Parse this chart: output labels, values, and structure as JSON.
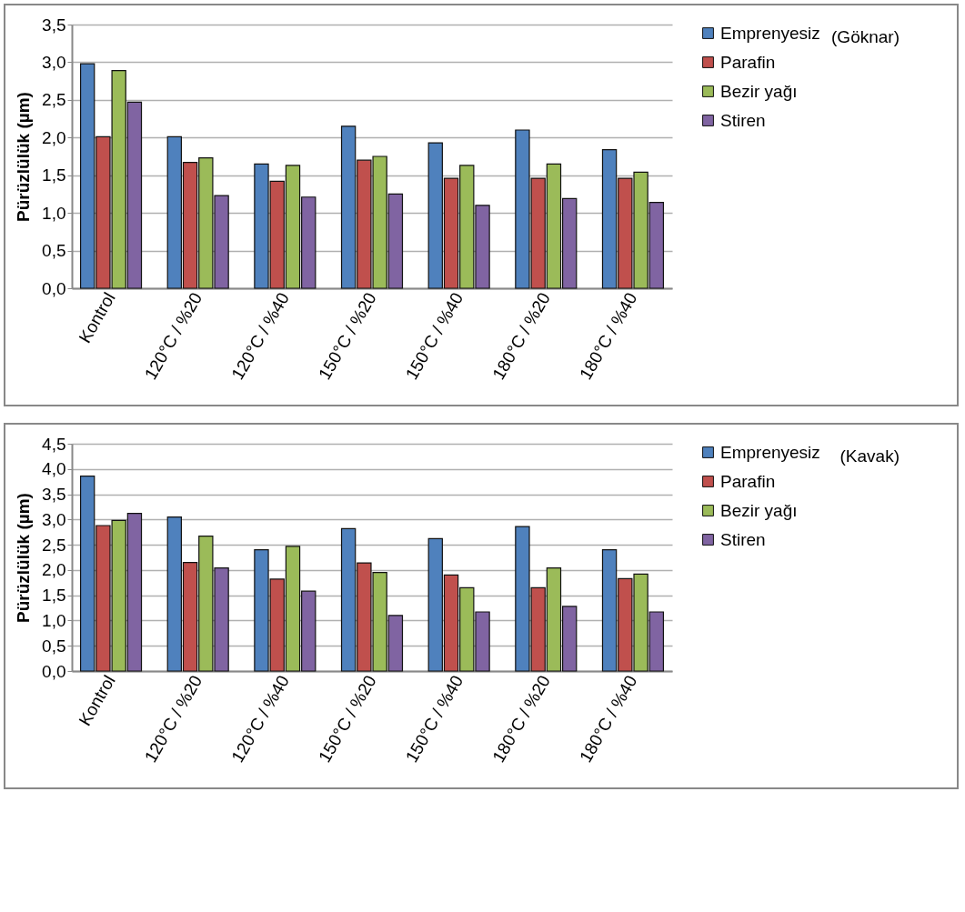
{
  "chart_data": [
    {
      "type": "bar",
      "ylabel": "Pürüzlülük (µm)",
      "annotations": [
        "(Göknar)"
      ],
      "categories": [
        "Kontrol",
        "120°C / %20",
        "120°C / %40",
        "150°C / %20",
        "150°C / %40",
        "180°C / %20",
        "180°C / %40"
      ],
      "series": [
        {
          "name": "Emprenyesiz",
          "color": "#4f81bd",
          "values": [
            2.98,
            2.01,
            1.65,
            2.15,
            1.93,
            2.1,
            1.84
          ]
        },
        {
          "name": "Parafin",
          "color": "#c0504d",
          "values": [
            2.01,
            1.67,
            1.42,
            1.7,
            1.46,
            1.46,
            1.46
          ]
        },
        {
          "name": "Bezir yağı",
          "color": "#9bbb59",
          "values": [
            2.89,
            1.73,
            1.63,
            1.75,
            1.63,
            1.65,
            1.54
          ]
        },
        {
          "name": "Stiren",
          "color": "#8064a2",
          "values": [
            2.47,
            1.23,
            1.21,
            1.25,
            1.1,
            1.19,
            1.14
          ]
        }
      ],
      "ylim": [
        0,
        3.5
      ],
      "yticks": [
        {
          "value": 0,
          "label": "0,0"
        },
        {
          "value": 0.5,
          "label": "0,5"
        },
        {
          "value": 1,
          "label": "1,0"
        },
        {
          "value": 1.5,
          "label": "1,5"
        },
        {
          "value": 2,
          "label": "2,0"
        },
        {
          "value": 2.5,
          "label": "2,5"
        },
        {
          "value": 3,
          "label": "3,0"
        },
        {
          "value": 3.5,
          "label": "3,5"
        }
      ],
      "grid": "y",
      "legend": "right"
    },
    {
      "type": "bar",
      "ylabel": "Pürüzlülük (µm)",
      "annotations": [
        "(Kavak)"
      ],
      "categories": [
        "Kontrol",
        "120°C / %20",
        "120°C / %40",
        "150°C / %20",
        "150°C / %40",
        "180°C / %20",
        "180°C / %40"
      ],
      "series": [
        {
          "name": "Emprenyesiz",
          "color": "#4f81bd",
          "values": [
            3.86,
            3.05,
            2.4,
            2.82,
            2.62,
            2.86,
            2.4
          ]
        },
        {
          "name": "Parafin",
          "color": "#c0504d",
          "values": [
            2.88,
            2.15,
            1.82,
            2.14,
            1.9,
            1.65,
            1.83
          ]
        },
        {
          "name": "Bezir yağı",
          "color": "#9bbb59",
          "values": [
            2.98,
            2.67,
            2.47,
            1.95,
            1.65,
            2.04,
            1.92
          ]
        },
        {
          "name": "Stiren",
          "color": "#8064a2",
          "values": [
            3.12,
            2.04,
            1.58,
            1.1,
            1.17,
            1.28,
            1.17
          ]
        }
      ],
      "ylim": [
        0,
        4.5
      ],
      "yticks": [
        {
          "value": 0,
          "label": "0,0"
        },
        {
          "value": 0.5,
          "label": "0,5"
        },
        {
          "value": 1,
          "label": "1,0"
        },
        {
          "value": 1.5,
          "label": "1,5"
        },
        {
          "value": 2,
          "label": "2,0"
        },
        {
          "value": 2.5,
          "label": "2,5"
        },
        {
          "value": 3,
          "label": "3,0"
        },
        {
          "value": 3.5,
          "label": "3,5"
        },
        {
          "value": 4,
          "label": "4,0"
        },
        {
          "value": 4.5,
          "label": "4,5"
        }
      ],
      "grid": "y",
      "legend": "right"
    }
  ]
}
